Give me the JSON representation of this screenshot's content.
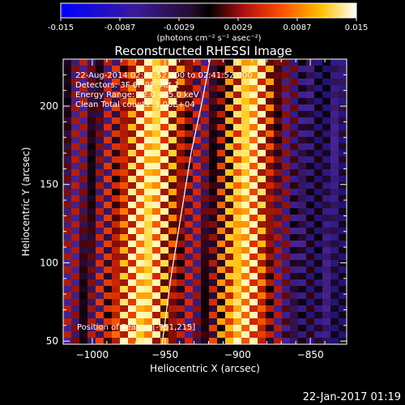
{
  "colorbar": {
    "ticks": [
      "-0.015",
      "-0.0087",
      "-0.0029",
      "0.0029",
      "0.0087",
      "0.015"
    ],
    "unit_label": "(photons cm⁻² s⁻¹ asec⁻²)"
  },
  "footer_timestamp": "22-Jan-2017 01:19",
  "chart_data": {
    "type": "heatmap",
    "title": "Reconstructed RHESSI Image",
    "xlabel": "Heliocentric X (arcsec)",
    "ylabel": "Heliocentric Y (arcsec)",
    "xlim": [
      -1020,
      -825
    ],
    "ylim": [
      48,
      230
    ],
    "x_ticks": [
      -1000,
      -950,
      -900,
      -850
    ],
    "y_ticks": [
      50,
      100,
      150,
      200
    ],
    "colormap": "red-temperature",
    "color_range": [
      -0.015,
      0.015
    ],
    "annotations": [
      "22-Aug-2014 02:41:52.000 to 02:41:52.000",
      "Detectors: 3F 6F 9F, Att 1",
      "Energy Range: 12.0 - 25.0 keV",
      "Clean     Total counts: 1.08E+04"
    ],
    "peak_label": "Position of Peak = [-951,215]",
    "peak": [
      -951,
      215
    ],
    "limb": [
      [
        -952,
        48
      ],
      [
        -946,
        90
      ],
      [
        -939,
        130
      ],
      [
        -932,
        170
      ],
      [
        -924,
        205
      ],
      [
        -919,
        230
      ]
    ]
  }
}
